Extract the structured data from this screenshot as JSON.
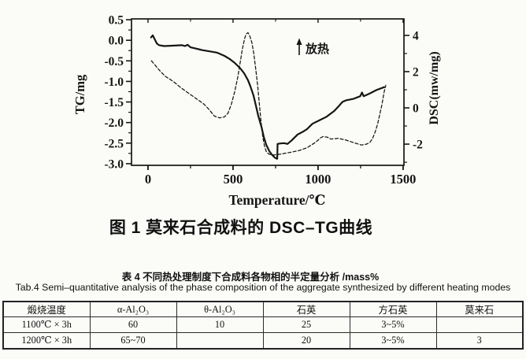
{
  "figure": {
    "caption": "图 1  莫来石合成料的 DSC–TG曲线"
  },
  "chart_data": {
    "type": "line",
    "title": "图 1 莫来石合成料的 DSC–TG曲线",
    "xlabel": "Temperature/℃",
    "x_ticks": [
      0,
      500,
      1000,
      1500
    ],
    "x_tick_labels": [
      "0",
      "500",
      "1000",
      "1500"
    ],
    "x_minor_ticks": [
      250,
      750,
      1250
    ],
    "xlim": [
      -97,
      1505
    ],
    "grid": false,
    "left_axis": {
      "label": "TG/mg",
      "tick_labels": [
        "0.5",
        "0.0",
        "-0.5",
        "-1.0",
        "-1.5",
        "-2.0",
        "-2.5",
        "-3.0"
      ],
      "lim": [
        0.52,
        -3.04
      ]
    },
    "right_axis": {
      "label": "DSC(mw/mg)",
      "tick_labels": [
        "4",
        "2",
        "0",
        "-2"
      ],
      "minor_ticks": [
        3,
        1,
        -1,
        -3
      ],
      "lim": [
        4.91,
        -3.17
      ]
    },
    "annotation": {
      "symbol": "↑",
      "text": "放热"
    },
    "series": [
      {
        "name": "TG",
        "axis": "left",
        "style": "solid",
        "points": [
          [
            18,
            0.07
          ],
          [
            28,
            0.12
          ],
          [
            40,
            0.02
          ],
          [
            52,
            -0.08
          ],
          [
            65,
            -0.12
          ],
          [
            95,
            -0.14
          ],
          [
            145,
            -0.13
          ],
          [
            200,
            -0.12
          ],
          [
            218,
            -0.14
          ],
          [
            233,
            -0.11
          ],
          [
            250,
            -0.17
          ],
          [
            280,
            -0.2
          ],
          [
            320,
            -0.24
          ],
          [
            365,
            -0.27
          ],
          [
            405,
            -0.3
          ],
          [
            450,
            -0.38
          ],
          [
            482,
            -0.46
          ],
          [
            510,
            -0.55
          ],
          [
            542,
            -0.68
          ],
          [
            565,
            -0.8
          ],
          [
            588,
            -0.97
          ],
          [
            602,
            -1.12
          ],
          [
            620,
            -1.34
          ],
          [
            634,
            -1.58
          ],
          [
            648,
            -1.83
          ],
          [
            667,
            -2.1
          ],
          [
            681,
            -2.35
          ],
          [
            695,
            -2.54
          ],
          [
            713,
            -2.69
          ],
          [
            728,
            -2.78
          ],
          [
            745,
            -2.85
          ],
          [
            758,
            -2.88
          ],
          [
            760,
            -2.88
          ],
          [
            762,
            -2.52
          ],
          [
            775,
            -2.51
          ],
          [
            800,
            -2.5
          ],
          [
            820,
            -2.52
          ],
          [
            843,
            -2.44
          ],
          [
            880,
            -2.29
          ],
          [
            912,
            -2.22
          ],
          [
            935,
            -2.16
          ],
          [
            967,
            -2.03
          ],
          [
            1005,
            -1.95
          ],
          [
            1050,
            -1.86
          ],
          [
            1095,
            -1.72
          ],
          [
            1120,
            -1.61
          ],
          [
            1143,
            -1.5
          ],
          [
            1165,
            -1.46
          ],
          [
            1210,
            -1.42
          ],
          [
            1248,
            -1.36
          ],
          [
            1258,
            -1.27
          ],
          [
            1268,
            -1.36
          ],
          [
            1305,
            -1.29
          ],
          [
            1343,
            -1.21
          ],
          [
            1389,
            -1.14
          ]
        ]
      },
      {
        "name": "DSC",
        "axis": "right",
        "style": "dashed",
        "points": [
          [
            20,
            2.6
          ],
          [
            60,
            2.15
          ],
          [
            100,
            1.75
          ],
          [
            150,
            1.45
          ],
          [
            195,
            1.1
          ],
          [
            240,
            0.8
          ],
          [
            285,
            0.5
          ],
          [
            330,
            0.2
          ],
          [
            360,
            -0.1
          ],
          [
            390,
            -0.45
          ],
          [
            420,
            -0.55
          ],
          [
            450,
            -0.5
          ],
          [
            470,
            -0.3
          ],
          [
            490,
            0.2
          ],
          [
            510,
            0.9
          ],
          [
            528,
            1.7
          ],
          [
            542,
            2.5
          ],
          [
            556,
            3.3
          ],
          [
            570,
            3.9
          ],
          [
            580,
            4.1
          ],
          [
            588,
            4.15
          ],
          [
            597,
            4.0
          ],
          [
            611,
            3.6
          ],
          [
            622,
            3.0
          ],
          [
            634,
            2.1
          ],
          [
            645,
            1.2
          ],
          [
            655,
            0.2
          ],
          [
            665,
            -0.8
          ],
          [
            675,
            -1.6
          ],
          [
            685,
            -2.1
          ],
          [
            695,
            -2.4
          ],
          [
            710,
            -2.55
          ],
          [
            740,
            -2.6
          ],
          [
            780,
            -2.55
          ],
          [
            840,
            -2.45
          ],
          [
            890,
            -2.35
          ],
          [
            935,
            -2.2
          ],
          [
            960,
            -2.05
          ],
          [
            985,
            -1.9
          ],
          [
            1000,
            -1.78
          ],
          [
            1015,
            -1.65
          ],
          [
            1030,
            -1.58
          ],
          [
            1055,
            -1.62
          ],
          [
            1075,
            -1.72
          ],
          [
            1120,
            -1.68
          ],
          [
            1165,
            -1.78
          ],
          [
            1210,
            -1.92
          ],
          [
            1255,
            -2.05
          ],
          [
            1285,
            -2.0
          ],
          [
            1305,
            -1.9
          ],
          [
            1320,
            -1.7
          ],
          [
            1335,
            -1.35
          ],
          [
            1350,
            -0.9
          ],
          [
            1362,
            -0.4
          ],
          [
            1375,
            0.15
          ],
          [
            1388,
            0.85
          ],
          [
            1398,
            1.25
          ]
        ]
      }
    ]
  },
  "table": {
    "caption_zh": "表 4  不同热处理制度下合成料各物相的半定量分析 /mass%",
    "caption_en": "Tab.4 Semi–quantitative analysis of the phase composition of the aggregate synthesized by different heating modes",
    "headers": [
      "煅烧温度",
      "α-Al₂O₃",
      "θ-Al₂O₃",
      "石英",
      "方石英",
      "莫来石"
    ],
    "rows": [
      [
        "1100℃ × 3h",
        "60",
        "10",
        "25",
        "3~5%",
        ""
      ],
      [
        "1200℃ × 3h",
        "65~70",
        "",
        "20",
        "3~5%",
        "3"
      ]
    ]
  },
  "colors": {
    "ink": "#151515",
    "paper": "#fbfbf8"
  }
}
